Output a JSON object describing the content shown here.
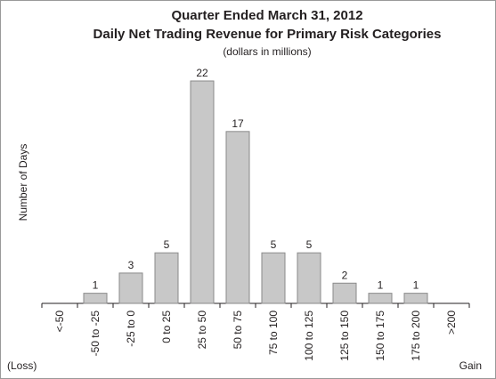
{
  "chart_data": {
    "type": "bar",
    "title": "Quarter Ended March 31, 2012",
    "subtitle": "Daily Net Trading Revenue for Primary Risk Categories",
    "note": "(dollars in millions)",
    "y_label": "Number of Days",
    "left_annotation": "(Loss)",
    "right_annotation": "Gain",
    "categories": [
      "<-50",
      "-50 to -25",
      "-25 to 0",
      "0 to 25",
      "25 to 50",
      "50 to 75",
      "75 to 100",
      "100 to 125",
      "125 to 150",
      "150 to 175",
      "175 to 200",
      ">200"
    ],
    "values": [
      0,
      1,
      3,
      5,
      22,
      17,
      5,
      5,
      2,
      1,
      1,
      0
    ],
    "color": "#c8c8c8",
    "ylim": [
      0,
      22
    ]
  }
}
